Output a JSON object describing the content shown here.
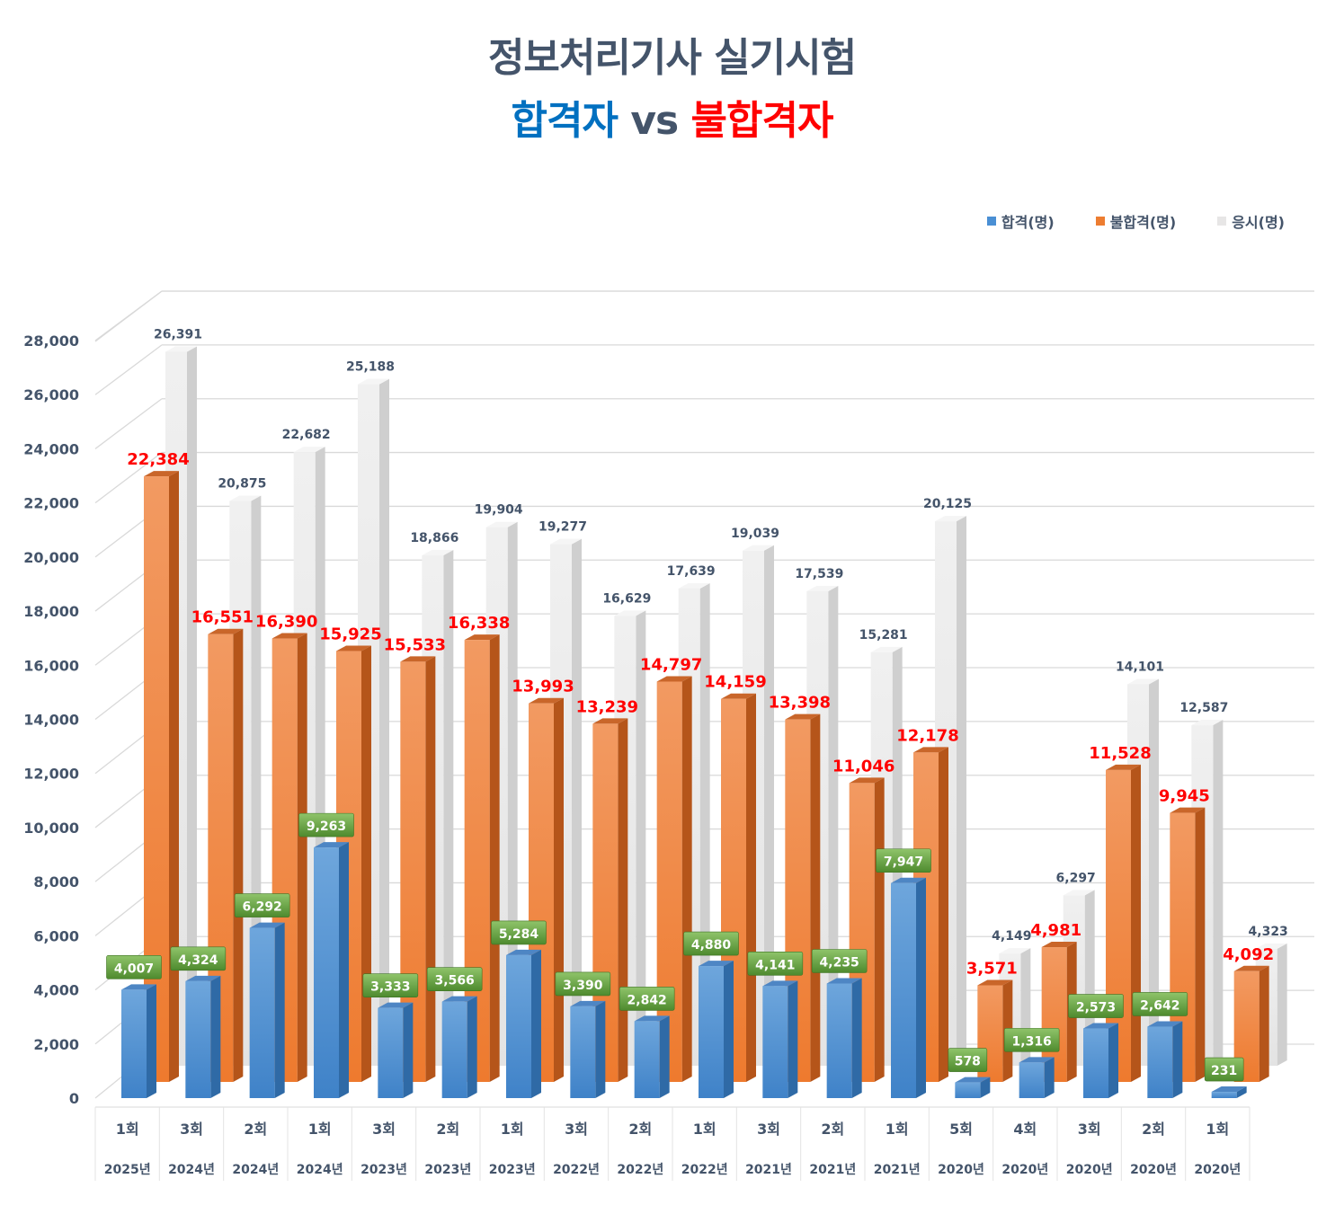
{
  "title": {
    "line1": "정보처리기사 실기시험",
    "line2_pass": "합격자",
    "line2_vs": "vs",
    "line2_fail": "불합격자"
  },
  "colors": {
    "pass": "#5b9bd5",
    "fail": "#ed7d31",
    "total": "#e7e6e6",
    "pass_label_bg": "#70ad47",
    "fail_label": "#ff0000",
    "axis_text": "#44546a",
    "title_blue": "#0070c0"
  },
  "chart_data": {
    "type": "bar",
    "legend": {
      "position": "top-right",
      "items": [
        "합격(명)",
        "불합격(명)",
        "응시(명)"
      ]
    },
    "ylim": [
      0,
      28000
    ],
    "yticks": [
      "0",
      "2,000",
      "4,000",
      "6,000",
      "8,000",
      "10,000",
      "12,000",
      "14,000",
      "16,000",
      "18,000",
      "20,000",
      "22,000",
      "24,000",
      "26,000",
      "28,000"
    ],
    "grid": true,
    "categories": [
      {
        "round": "1회",
        "year": "2025년"
      },
      {
        "round": "3회",
        "year": "2024년"
      },
      {
        "round": "2회",
        "year": "2024년"
      },
      {
        "round": "1회",
        "year": "2024년"
      },
      {
        "round": "3회",
        "year": "2023년"
      },
      {
        "round": "2회",
        "year": "2023년"
      },
      {
        "round": "1회",
        "year": "2023년"
      },
      {
        "round": "3회",
        "year": "2022년"
      },
      {
        "round": "2회",
        "year": "2022년"
      },
      {
        "round": "1회",
        "year": "2022년"
      },
      {
        "round": "3회",
        "year": "2021년"
      },
      {
        "round": "2회",
        "year": "2021년"
      },
      {
        "round": "1회",
        "year": "2021년"
      },
      {
        "round": "5회",
        "year": "2020년"
      },
      {
        "round": "4회",
        "year": "2020년"
      },
      {
        "round": "3회",
        "year": "2020년"
      },
      {
        "round": "2회",
        "year": "2020년"
      },
      {
        "round": "1회",
        "year": "2020년"
      }
    ],
    "series": [
      {
        "name": "합격(명)",
        "values": [
          4007,
          4324,
          6292,
          9263,
          3333,
          3566,
          5284,
          3390,
          2842,
          4880,
          4141,
          4235,
          7947,
          578,
          1316,
          2573,
          2642,
          231
        ],
        "labels": [
          "4,007",
          "4,324",
          "6,292",
          "9,263",
          "3,333",
          "3,566",
          "5,284",
          "3,390",
          "2,842",
          "4,880",
          "4,141",
          "4,235",
          "7,947",
          "578",
          "1,316",
          "2,573",
          "2,642",
          "231"
        ]
      },
      {
        "name": "불합격(명)",
        "values": [
          22384,
          16551,
          16390,
          15925,
          15533,
          16338,
          13993,
          13239,
          14797,
          14159,
          13398,
          11046,
          12178,
          3571,
          4981,
          11528,
          9945,
          4092
        ],
        "labels": [
          "22,384",
          "16,551",
          "16,390",
          "15,925",
          "15,533",
          "16,338",
          "13,993",
          "13,239",
          "14,797",
          "14,159",
          "13,398",
          "11,046",
          "12,178",
          "3,571",
          "4,981",
          "11,528",
          "9,945",
          "4,092"
        ]
      },
      {
        "name": "응시(명)",
        "values": [
          26391,
          20875,
          22682,
          25188,
          18866,
          19904,
          19277,
          16629,
          17639,
          19039,
          17539,
          15281,
          20125,
          4149,
          6297,
          14101,
          12587,
          4323
        ],
        "labels": [
          "26,391",
          "20,875",
          "22,682",
          "25,188",
          "18,866",
          "19,904",
          "19,277",
          "16,629",
          "17,639",
          "19,039",
          "17,539",
          "15,281",
          "20,125",
          "4,149",
          "6,297",
          "14,101",
          "12,587",
          "4,323"
        ]
      }
    ]
  }
}
